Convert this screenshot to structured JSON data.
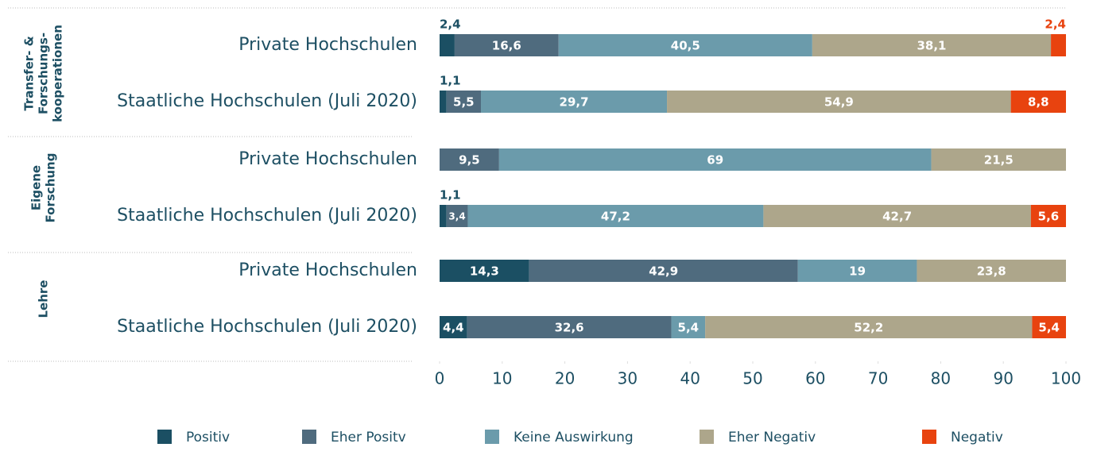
{
  "chart_data": {
    "type": "stacked-barh",
    "categories": [
      "Private Hochschulen",
      "Staatliche Hochschulen (Juli 2020)",
      "Private Hochschulen",
      "Staatliche Hochschulen (Juli 2020)",
      "Private Hochschulen",
      "Staatliche Hochschulen (Juli 2020)"
    ],
    "groups": [
      {
        "lines": [
          "Transfer- &",
          "Forschungs-",
          "kooperationen"
        ]
      },
      {
        "lines": [
          "Eigene",
          "Forschung"
        ]
      },
      {
        "lines": [
          "Lehre"
        ]
      }
    ],
    "series": [
      {
        "name": "Positiv",
        "color": "#1b4f63",
        "values": [
          2.4,
          1.1,
          null,
          1.1,
          14.3,
          4.4
        ],
        "value_labels": [
          "2,4",
          "1,1",
          null,
          "1,1",
          "14,3",
          "4,4"
        ]
      },
      {
        "name": "Eher Positv",
        "color": "#4f6b7e",
        "values": [
          16.6,
          5.5,
          9.5,
          3.4,
          42.9,
          32.6
        ],
        "value_labels": [
          "16,6",
          "5,5",
          "9,5",
          "3,4",
          "42,9",
          "32,6"
        ]
      },
      {
        "name": "Keine Auswirkung",
        "color": "#6b9bab",
        "values": [
          40.5,
          29.7,
          69,
          47.2,
          19,
          5.4
        ],
        "value_labels": [
          "40,5",
          "29,7",
          "69",
          "47,2",
          "19",
          "5,4"
        ]
      },
      {
        "name": "Eher Negativ",
        "color": "#ada68b",
        "values": [
          38.1,
          54.9,
          21.5,
          42.7,
          23.8,
          52.2
        ],
        "value_labels": [
          "38,1",
          "54,9",
          "21,5",
          "42,7",
          "23,8",
          "52,2"
        ]
      },
      {
        "name": "Negativ",
        "color": "#e8430f",
        "values": [
          2.4,
          8.8,
          null,
          5.6,
          null,
          5.4
        ],
        "value_labels": [
          "2,4",
          "8,8",
          null,
          "5,6",
          null,
          "5,4"
        ]
      }
    ],
    "xlim": [
      0,
      100
    ],
    "xticks": [
      0,
      10,
      20,
      30,
      40,
      50,
      60,
      70,
      80,
      90,
      100
    ]
  }
}
